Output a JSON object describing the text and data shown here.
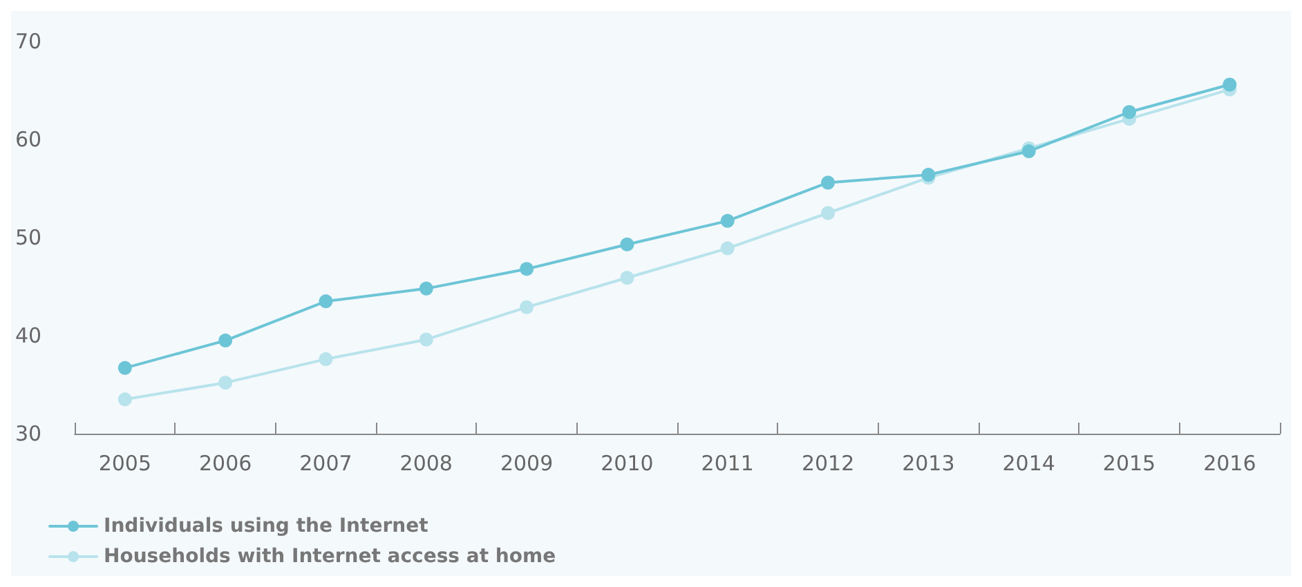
{
  "chart_data": {
    "type": "line",
    "categories": [
      "2005",
      "2006",
      "2007",
      "2008",
      "2009",
      "2010",
      "2011",
      "2012",
      "2013",
      "2014",
      "2015",
      "2016"
    ],
    "series": [
      {
        "name": "Individuals using the Internet",
        "color": "#6cc5d6",
        "values": [
          36.7,
          39.5,
          43.5,
          44.8,
          46.8,
          49.3,
          51.7,
          55.6,
          56.4,
          58.8,
          62.8,
          65.6
        ]
      },
      {
        "name": "Households with Internet access at home",
        "color": "#b8e3ec",
        "values": [
          33.5,
          35.2,
          37.6,
          39.6,
          42.9,
          45.9,
          48.9,
          52.5,
          56.1,
          59.1,
          62.1,
          65.1
        ]
      }
    ],
    "ylim": [
      30,
      70
    ],
    "yticks": [
      30,
      40,
      50,
      60,
      70
    ],
    "grid": false,
    "legend": "bottom left",
    "marker": "circle",
    "line_style": "solid"
  }
}
